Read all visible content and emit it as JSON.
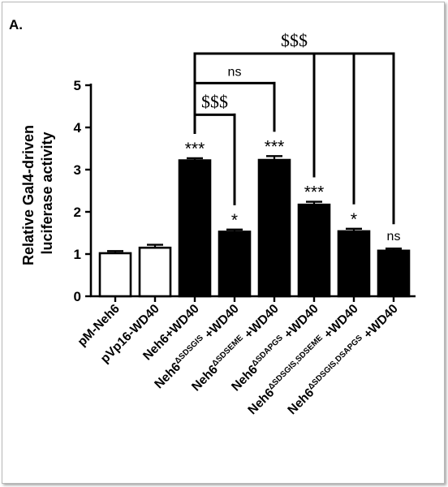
{
  "panel_label": "A.",
  "chart_data": {
    "type": "bar",
    "ylabel_lines": [
      "Relative Gal4-driven",
      "luciferase activity"
    ],
    "ylim": [
      0,
      5
    ],
    "yticks": [
      "0",
      "1",
      "2",
      "3",
      "4",
      "5"
    ],
    "grid": false,
    "categories": [
      {
        "base": "pM-Neh6",
        "sup": "",
        "suffix": ""
      },
      {
        "base": "pVp16-WD40",
        "sup": "",
        "suffix": ""
      },
      {
        "base": "Neh6+WD40",
        "sup": "",
        "suffix": ""
      },
      {
        "base": "Neh6",
        "sup": "ΔSDSGIS",
        "suffix": " +WD40"
      },
      {
        "base": "Neh6",
        "sup": "ΔSDSEME",
        "suffix": " +WD40"
      },
      {
        "base": "Neh6",
        "sup": "ΔSDAPGS",
        "suffix": " +WD40"
      },
      {
        "base": "Neh6",
        "sup": "ΔSDSGIS,SDSEME",
        "suffix": " +WD40"
      },
      {
        "base": "Neh6",
        "sup": "ΔSDSGIS,DSAPGS",
        "suffix": " +WD40"
      }
    ],
    "values": [
      1.02,
      1.15,
      3.22,
      1.53,
      3.23,
      2.17,
      1.54,
      1.08
    ],
    "errors": [
      0.05,
      0.07,
      0.05,
      0.05,
      0.09,
      0.07,
      0.06,
      0.05
    ],
    "fill": [
      "#ffffff",
      "#ffffff",
      "#000000",
      "#000000",
      "#000000",
      "#000000",
      "#000000",
      "#000000"
    ],
    "significance": [
      "",
      "",
      "***",
      "*",
      "***",
      "***",
      "*",
      "ns"
    ],
    "comparisons": [
      {
        "from": 2,
        "to": [
          3
        ],
        "label": "$$$",
        "y": 4.3
      },
      {
        "from": 2,
        "to": [
          4
        ],
        "label": "ns",
        "y": 5.05
      },
      {
        "from": 2,
        "to": [
          5,
          6,
          7
        ],
        "label": "$$$",
        "y": 5.75
      }
    ]
  }
}
